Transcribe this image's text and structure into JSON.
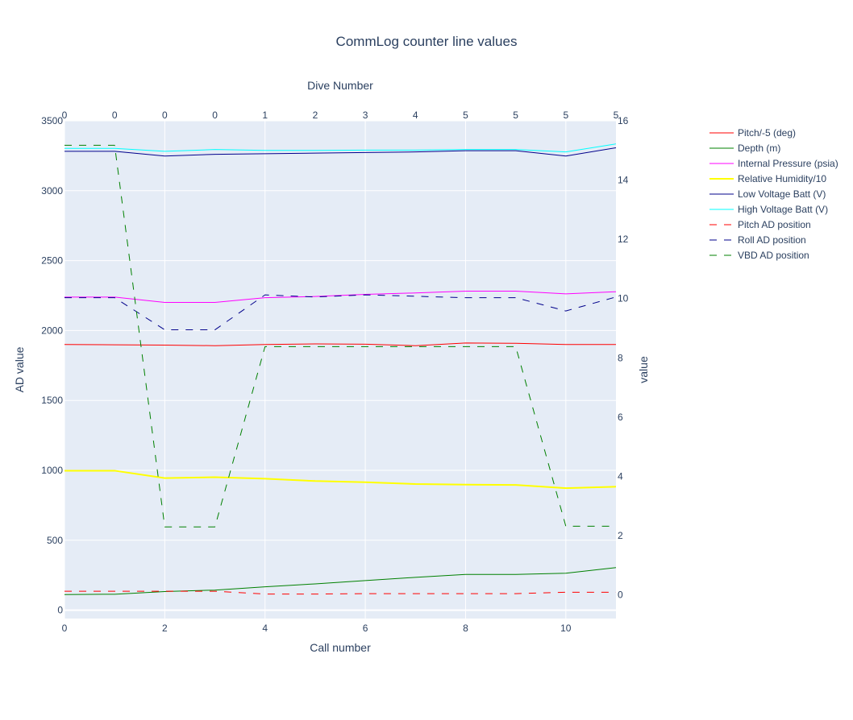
{
  "chart_data": {
    "type": "line",
    "title": "CommLog counter line values",
    "x": [
      0,
      1,
      2,
      3,
      4,
      5,
      6,
      7,
      8,
      9,
      10,
      11
    ],
    "xlabel": "Call number",
    "xlim": [
      0,
      11
    ],
    "xticks": [
      "0",
      "2",
      "4",
      "6",
      "8",
      "10"
    ],
    "x2label": "Dive Number",
    "x2ticks": [
      "0",
      "0",
      "0",
      "0",
      "1",
      "2",
      "3",
      "4",
      "5",
      "5",
      "5",
      "5"
    ],
    "ylabel": "AD value",
    "ylim": [
      -60,
      3500
    ],
    "yticks": [
      "0",
      "500",
      "1000",
      "1500",
      "2000",
      "2500",
      "3000",
      "3500"
    ],
    "y2label": "value",
    "y2lim": [
      -0.8,
      16
    ],
    "y2ticks": [
      "0",
      "2",
      "4",
      "6",
      "8",
      "10",
      "12",
      "14",
      "16"
    ],
    "grid": true,
    "legend_position": "right",
    "series": [
      {
        "name": "Pitch/-5 (deg)",
        "axis": "y2",
        "color": "#ff0000",
        "dash": "solid",
        "width": 1,
        "values": [
          8.45,
          8.44,
          8.43,
          8.41,
          8.45,
          8.47,
          8.46,
          8.41,
          8.5,
          8.49,
          8.45,
          8.45
        ]
      },
      {
        "name": "Depth (m)",
        "axis": "y2",
        "color": "#008000",
        "dash": "solid",
        "width": 1,
        "values": [
          0.01,
          0.02,
          0.11,
          0.16,
          0.27,
          0.37,
          0.48,
          0.59,
          0.69,
          0.69,
          0.73,
          0.92
        ]
      },
      {
        "name": "Internal Pressure (psia)",
        "axis": "y2",
        "color": "#ff00ff",
        "dash": "solid",
        "width": 1,
        "values": [
          10.05,
          10.05,
          9.87,
          9.87,
          10.03,
          10.07,
          10.14,
          10.19,
          10.25,
          10.25,
          10.16,
          10.23
        ]
      },
      {
        "name": "Relative Humidity/10",
        "axis": "y2",
        "color": "#ffff00",
        "dash": "solid",
        "width": 2,
        "values": [
          4.19,
          4.19,
          3.94,
          3.97,
          3.92,
          3.84,
          3.8,
          3.74,
          3.72,
          3.71,
          3.6,
          3.65
        ]
      },
      {
        "name": "Low Voltage Batt (V)",
        "axis": "y2",
        "color": "#00008b",
        "dash": "solid",
        "width": 1,
        "values": [
          14.97,
          14.97,
          14.81,
          14.87,
          14.89,
          14.91,
          14.93,
          14.95,
          14.99,
          14.99,
          14.81,
          15.09
        ]
      },
      {
        "name": "High Voltage Batt (V)",
        "axis": "y2",
        "color": "#00ffff",
        "dash": "solid",
        "width": 1,
        "values": [
          15.07,
          15.07,
          14.97,
          15.03,
          15.0,
          15.0,
          15.01,
          15.01,
          15.03,
          15.03,
          14.95,
          15.22
        ]
      },
      {
        "name": "Pitch AD position",
        "axis": "y",
        "color": "#ff0000",
        "dash": "dash",
        "width": 1,
        "values": [
          135,
          135,
          135,
          135,
          115,
          115,
          118,
          118,
          118,
          118,
          128,
          128
        ]
      },
      {
        "name": "Roll AD position",
        "axis": "y",
        "color": "#00008b",
        "dash": "dash",
        "width": 1,
        "values": [
          2235,
          2235,
          2005,
          2005,
          2255,
          2240,
          2255,
          2245,
          2235,
          2235,
          2140,
          2240
        ]
      },
      {
        "name": "VBD AD position",
        "axis": "y",
        "color": "#008000",
        "dash": "dash",
        "width": 1,
        "values": [
          3325,
          3325,
          595,
          595,
          1885,
          1885,
          1885,
          1885,
          1885,
          1885,
          600,
          600
        ]
      }
    ]
  }
}
